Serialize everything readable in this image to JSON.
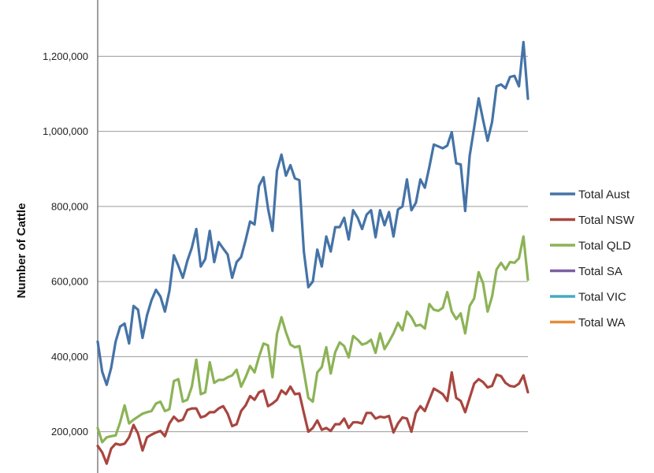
{
  "chart_data": {
    "type": "line",
    "title": "",
    "ylabel": "Number of Cattle",
    "xlabel": "",
    "ylim": [
      90000,
      1350000
    ],
    "yticks": [
      200000,
      400000,
      600000,
      800000,
      1000000,
      1200000
    ],
    "ytick_labels": [
      "200,000",
      "400,000",
      "600,000",
      "800,000",
      "1,000,000",
      "1,200,000"
    ],
    "grid": true,
    "legend_position": "right",
    "series": [
      {
        "name": "Total Aust",
        "color": "#4573a7",
        "values": [
          440000,
          360000,
          325000,
          370000,
          440000,
          480000,
          488000,
          435000,
          535000,
          525000,
          450000,
          510000,
          550000,
          578000,
          560000,
          520000,
          575000,
          670000,
          642000,
          610000,
          655000,
          690000,
          740000,
          640000,
          660000,
          735000,
          652000,
          705000,
          688000,
          672000,
          610000,
          652000,
          665000,
          710000,
          760000,
          752000,
          855000,
          878000,
          795000,
          735000,
          895000,
          938000,
          882000,
          910000,
          875000,
          870000,
          680000,
          585000,
          600000,
          685000,
          640000,
          720000,
          680000,
          745000,
          745000,
          770000,
          712000,
          790000,
          770000,
          740000,
          778000,
          790000,
          718000,
          790000,
          750000,
          785000,
          720000,
          792000,
          800000,
          872000,
          790000,
          810000,
          872000,
          850000,
          905000,
          965000,
          960000,
          955000,
          962000,
          998000,
          915000,
          912000,
          788000,
          935000,
          1010000,
          1088000,
          1030000,
          975000,
          1025000,
          1120000,
          1125000,
          1115000,
          1145000,
          1148000,
          1120000,
          1238000,
          1087000
        ]
      },
      {
        "name": "Total NSW",
        "color": "#a9453f",
        "values": [
          162000,
          145000,
          115000,
          155000,
          168000,
          165000,
          168000,
          185000,
          218000,
          195000,
          150000,
          185000,
          192000,
          198000,
          202000,
          188000,
          222000,
          240000,
          228000,
          232000,
          258000,
          262000,
          262000,
          238000,
          242000,
          252000,
          252000,
          262000,
          268000,
          248000,
          215000,
          220000,
          255000,
          270000,
          295000,
          285000,
          305000,
          310000,
          268000,
          275000,
          285000,
          310000,
          300000,
          320000,
          300000,
          302000,
          250000,
          200000,
          210000,
          230000,
          205000,
          210000,
          202000,
          220000,
          220000,
          235000,
          210000,
          225000,
          225000,
          222000,
          250000,
          250000,
          235000,
          240000,
          238000,
          242000,
          198000,
          222000,
          238000,
          235000,
          200000,
          250000,
          268000,
          255000,
          285000,
          315000,
          308000,
          300000,
          282000,
          358000,
          290000,
          282000,
          252000,
          290000,
          328000,
          340000,
          332000,
          318000,
          322000,
          352000,
          348000,
          330000,
          322000,
          320000,
          328000,
          350000,
          305000
        ]
      },
      {
        "name": "Total QLD",
        "color": "#8cb356",
        "values": [
          210000,
          172000,
          185000,
          188000,
          190000,
          225000,
          270000,
          222000,
          232000,
          240000,
          248000,
          252000,
          255000,
          275000,
          280000,
          255000,
          260000,
          335000,
          340000,
          280000,
          285000,
          320000,
          392000,
          300000,
          305000,
          385000,
          330000,
          338000,
          338000,
          345000,
          350000,
          365000,
          320000,
          345000,
          375000,
          358000,
          400000,
          435000,
          430000,
          345000,
          460000,
          505000,
          465000,
          432000,
          425000,
          428000,
          360000,
          290000,
          280000,
          358000,
          372000,
          425000,
          355000,
          412000,
          438000,
          428000,
          398000,
          455000,
          445000,
          432000,
          436000,
          445000,
          410000,
          462000,
          420000,
          440000,
          462000,
          490000,
          470000,
          520000,
          505000,
          482000,
          485000,
          475000,
          540000,
          525000,
          522000,
          530000,
          572000,
          520000,
          500000,
          515000,
          462000,
          535000,
          555000,
          625000,
          595000,
          520000,
          560000,
          632000,
          650000,
          632000,
          652000,
          650000,
          662000,
          720000,
          605000
        ]
      },
      {
        "name": "Total SA",
        "color": "#7d5fa0",
        "values": []
      },
      {
        "name": "Total VIC",
        "color": "#46a9c4",
        "values": []
      },
      {
        "name": "Total WA",
        "color": "#e58b3a",
        "values": []
      }
    ]
  }
}
